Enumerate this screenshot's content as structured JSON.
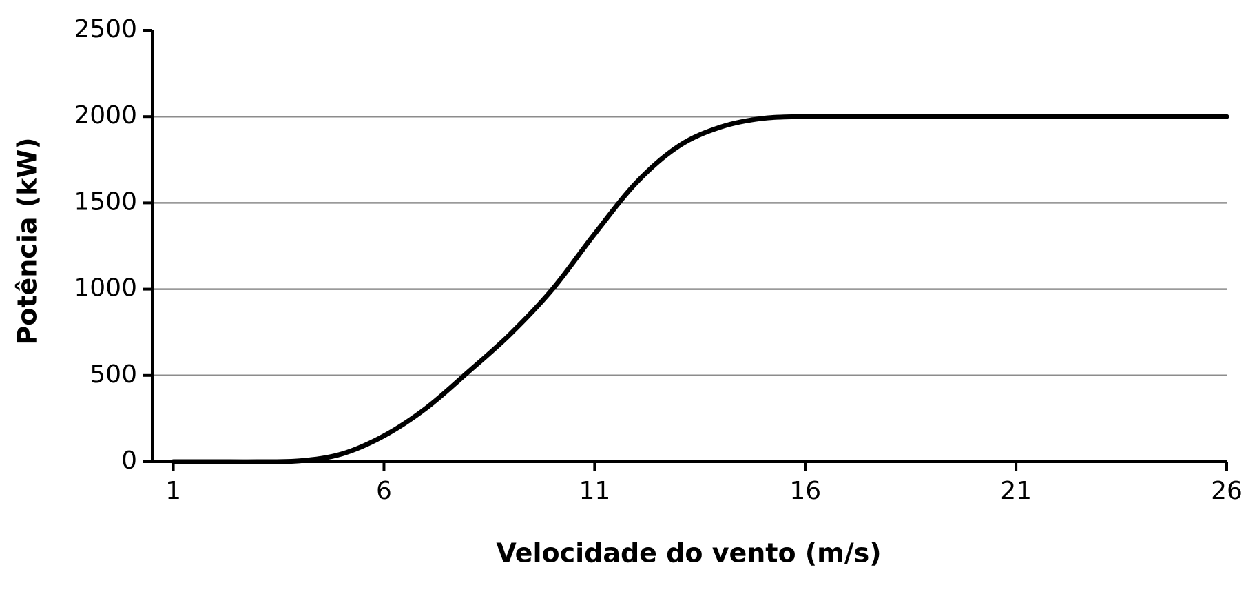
{
  "chart_data": {
    "type": "line",
    "x_label": "Velocidade do vento (m/s)",
    "y_label": "Potência (kW)",
    "x": [
      1,
      2,
      3,
      4,
      5,
      6,
      7,
      8,
      9,
      10,
      11,
      12,
      13,
      14,
      15,
      16,
      17,
      18,
      19,
      20,
      21,
      22,
      23,
      24,
      25,
      26
    ],
    "series": [
      {
        "color": "#000000",
        "values": [
          0,
          0,
          0,
          5,
          45,
          150,
          310,
          520,
          740,
          1000,
          1320,
          1620,
          1830,
          1940,
          1990,
          2000,
          2000,
          2000,
          2000,
          2000,
          2000,
          2000,
          2000,
          2000,
          2000,
          2000
        ]
      }
    ],
    "xlim": [
      0.5,
      26
    ],
    "xticks": [
      1,
      6,
      11,
      16,
      21,
      26
    ],
    "ylim": [
      0,
      2500
    ],
    "yticks": [
      0,
      500,
      1000,
      1500,
      2000,
      2500
    ],
    "grid": true
  }
}
